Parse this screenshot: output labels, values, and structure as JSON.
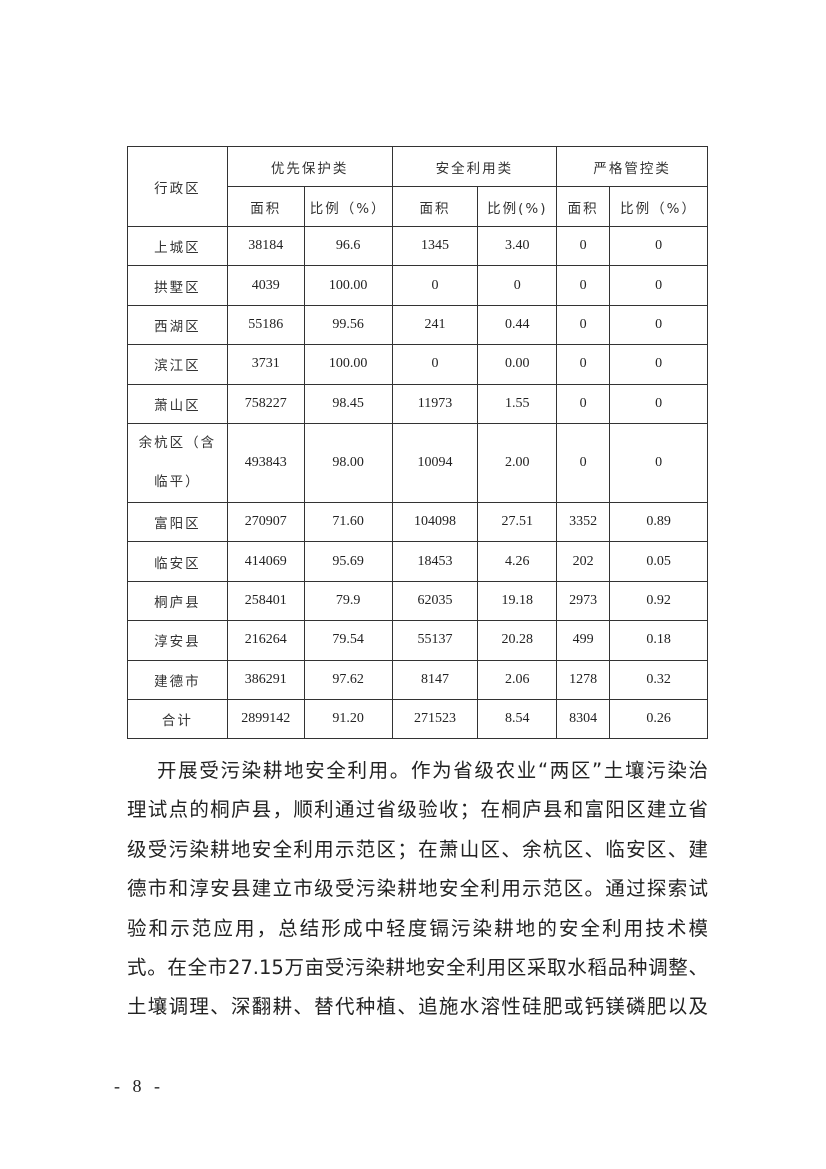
{
  "table": {
    "header": {
      "region": "行政区",
      "groups": [
        "优先保护类",
        "安全利用类",
        "严格管控类"
      ],
      "sub": [
        "面积",
        "比例（%）",
        "面积",
        "比例(%)",
        "面积",
        "比例（%）"
      ]
    },
    "rows": [
      [
        "上城区",
        "38184",
        "96.6",
        "1345",
        "3.40",
        "0",
        "0"
      ],
      [
        "拱墅区",
        "4039",
        "100.00",
        "0",
        "0",
        "0",
        "0"
      ],
      [
        "西湖区",
        "55186",
        "99.56",
        "241",
        "0.44",
        "0",
        "0"
      ],
      [
        "滨江区",
        "3731",
        "100.00",
        "0",
        "0.00",
        "0",
        "0"
      ],
      [
        "萧山区",
        "758227",
        "98.45",
        "11973",
        "1.55",
        "0",
        "0"
      ],
      [
        "余杭区（含临平）",
        "493843",
        "98.00",
        "10094",
        "2.00",
        "0",
        "0"
      ],
      [
        "富阳区",
        "270907",
        "71.60",
        "104098",
        "27.51",
        "3352",
        "0.89"
      ],
      [
        "临安区",
        "414069",
        "95.69",
        "18453",
        "4.26",
        "202",
        "0.05"
      ],
      [
        "桐庐县",
        "258401",
        "79.9",
        "62035",
        "19.18",
        "2973",
        "0.92"
      ],
      [
        "淳安县",
        "216264",
        "79.54",
        "55137",
        "20.28",
        "499",
        "0.18"
      ],
      [
        "建德市",
        "386291",
        "97.62",
        "8147",
        "2.06",
        "1278",
        "0.32"
      ],
      [
        "合计",
        "2899142",
        "91.20",
        "271523",
        "8.54",
        "8304",
        "0.26"
      ]
    ]
  },
  "paragraph_lines": [
    "开展受污染耕地安全利用。作为省级农业“两区”土壤污染治",
    "理试点的桐庐县，顺利通过省级验收；在桐庐县和富阳区建立省",
    "级受污染耕地安全利用示范区；在萧山区、余杭区、临安区、建",
    "德市和淳安县建立市级受污染耕地安全利用示范区。通过探索试",
    "验和示范应用，总结形成中轻度镉污染耕地的安全利用技术模",
    "式。在全市27.15万亩受污染耕地安全利用区采取水稻品种调整、",
    "土壤调理、深翻耕、替代种植、追施水溶性硅肥或钙镁磷肥以及"
  ],
  "page_number": "- 8 -"
}
